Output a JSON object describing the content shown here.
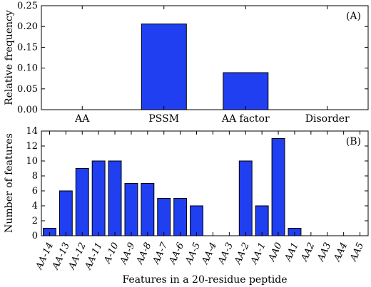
{
  "colors": {
    "bar": "#1f3ff0",
    "bar_edge": "#000000",
    "axis": "#000000"
  },
  "chart_data": [
    {
      "type": "bar",
      "panel_label": "(A)",
      "categories": [
        "AA",
        "PSSM",
        "AA factor",
        "Disorder"
      ],
      "values": [
        0.0,
        0.206,
        0.089,
        0.0
      ],
      "ylabel": "Relative frequency",
      "xlabel": "",
      "ylim": [
        0,
        0.25
      ],
      "yticks": [
        "0.00",
        "0.05",
        "0.10",
        "0.15",
        "0.20",
        "0.25"
      ],
      "grid": false
    },
    {
      "type": "bar",
      "panel_label": "(B)",
      "categories": [
        "AA-14",
        "AA-13",
        "AA-12",
        "AA-11",
        "A-10",
        "AA-9",
        "AA-8",
        "AA-7",
        "AA-6",
        "AA-5",
        "AA-4",
        "AA-3",
        "AA-2",
        "AA-1",
        "AA0",
        "AA1",
        "AA2",
        "AA3",
        "AA4",
        "AA5"
      ],
      "values": [
        1,
        6,
        9,
        10,
        10,
        7,
        7,
        5,
        5,
        4,
        0,
        0,
        10,
        4,
        13,
        1,
        0,
        0,
        0,
        0
      ],
      "ylabel": "Number of features",
      "xlabel": "Features in a 20-residue peptide",
      "ylim": [
        0,
        14
      ],
      "yticks": [
        "0",
        "2",
        "4",
        "6",
        "8",
        "10",
        "12",
        "14"
      ],
      "grid": false
    }
  ]
}
